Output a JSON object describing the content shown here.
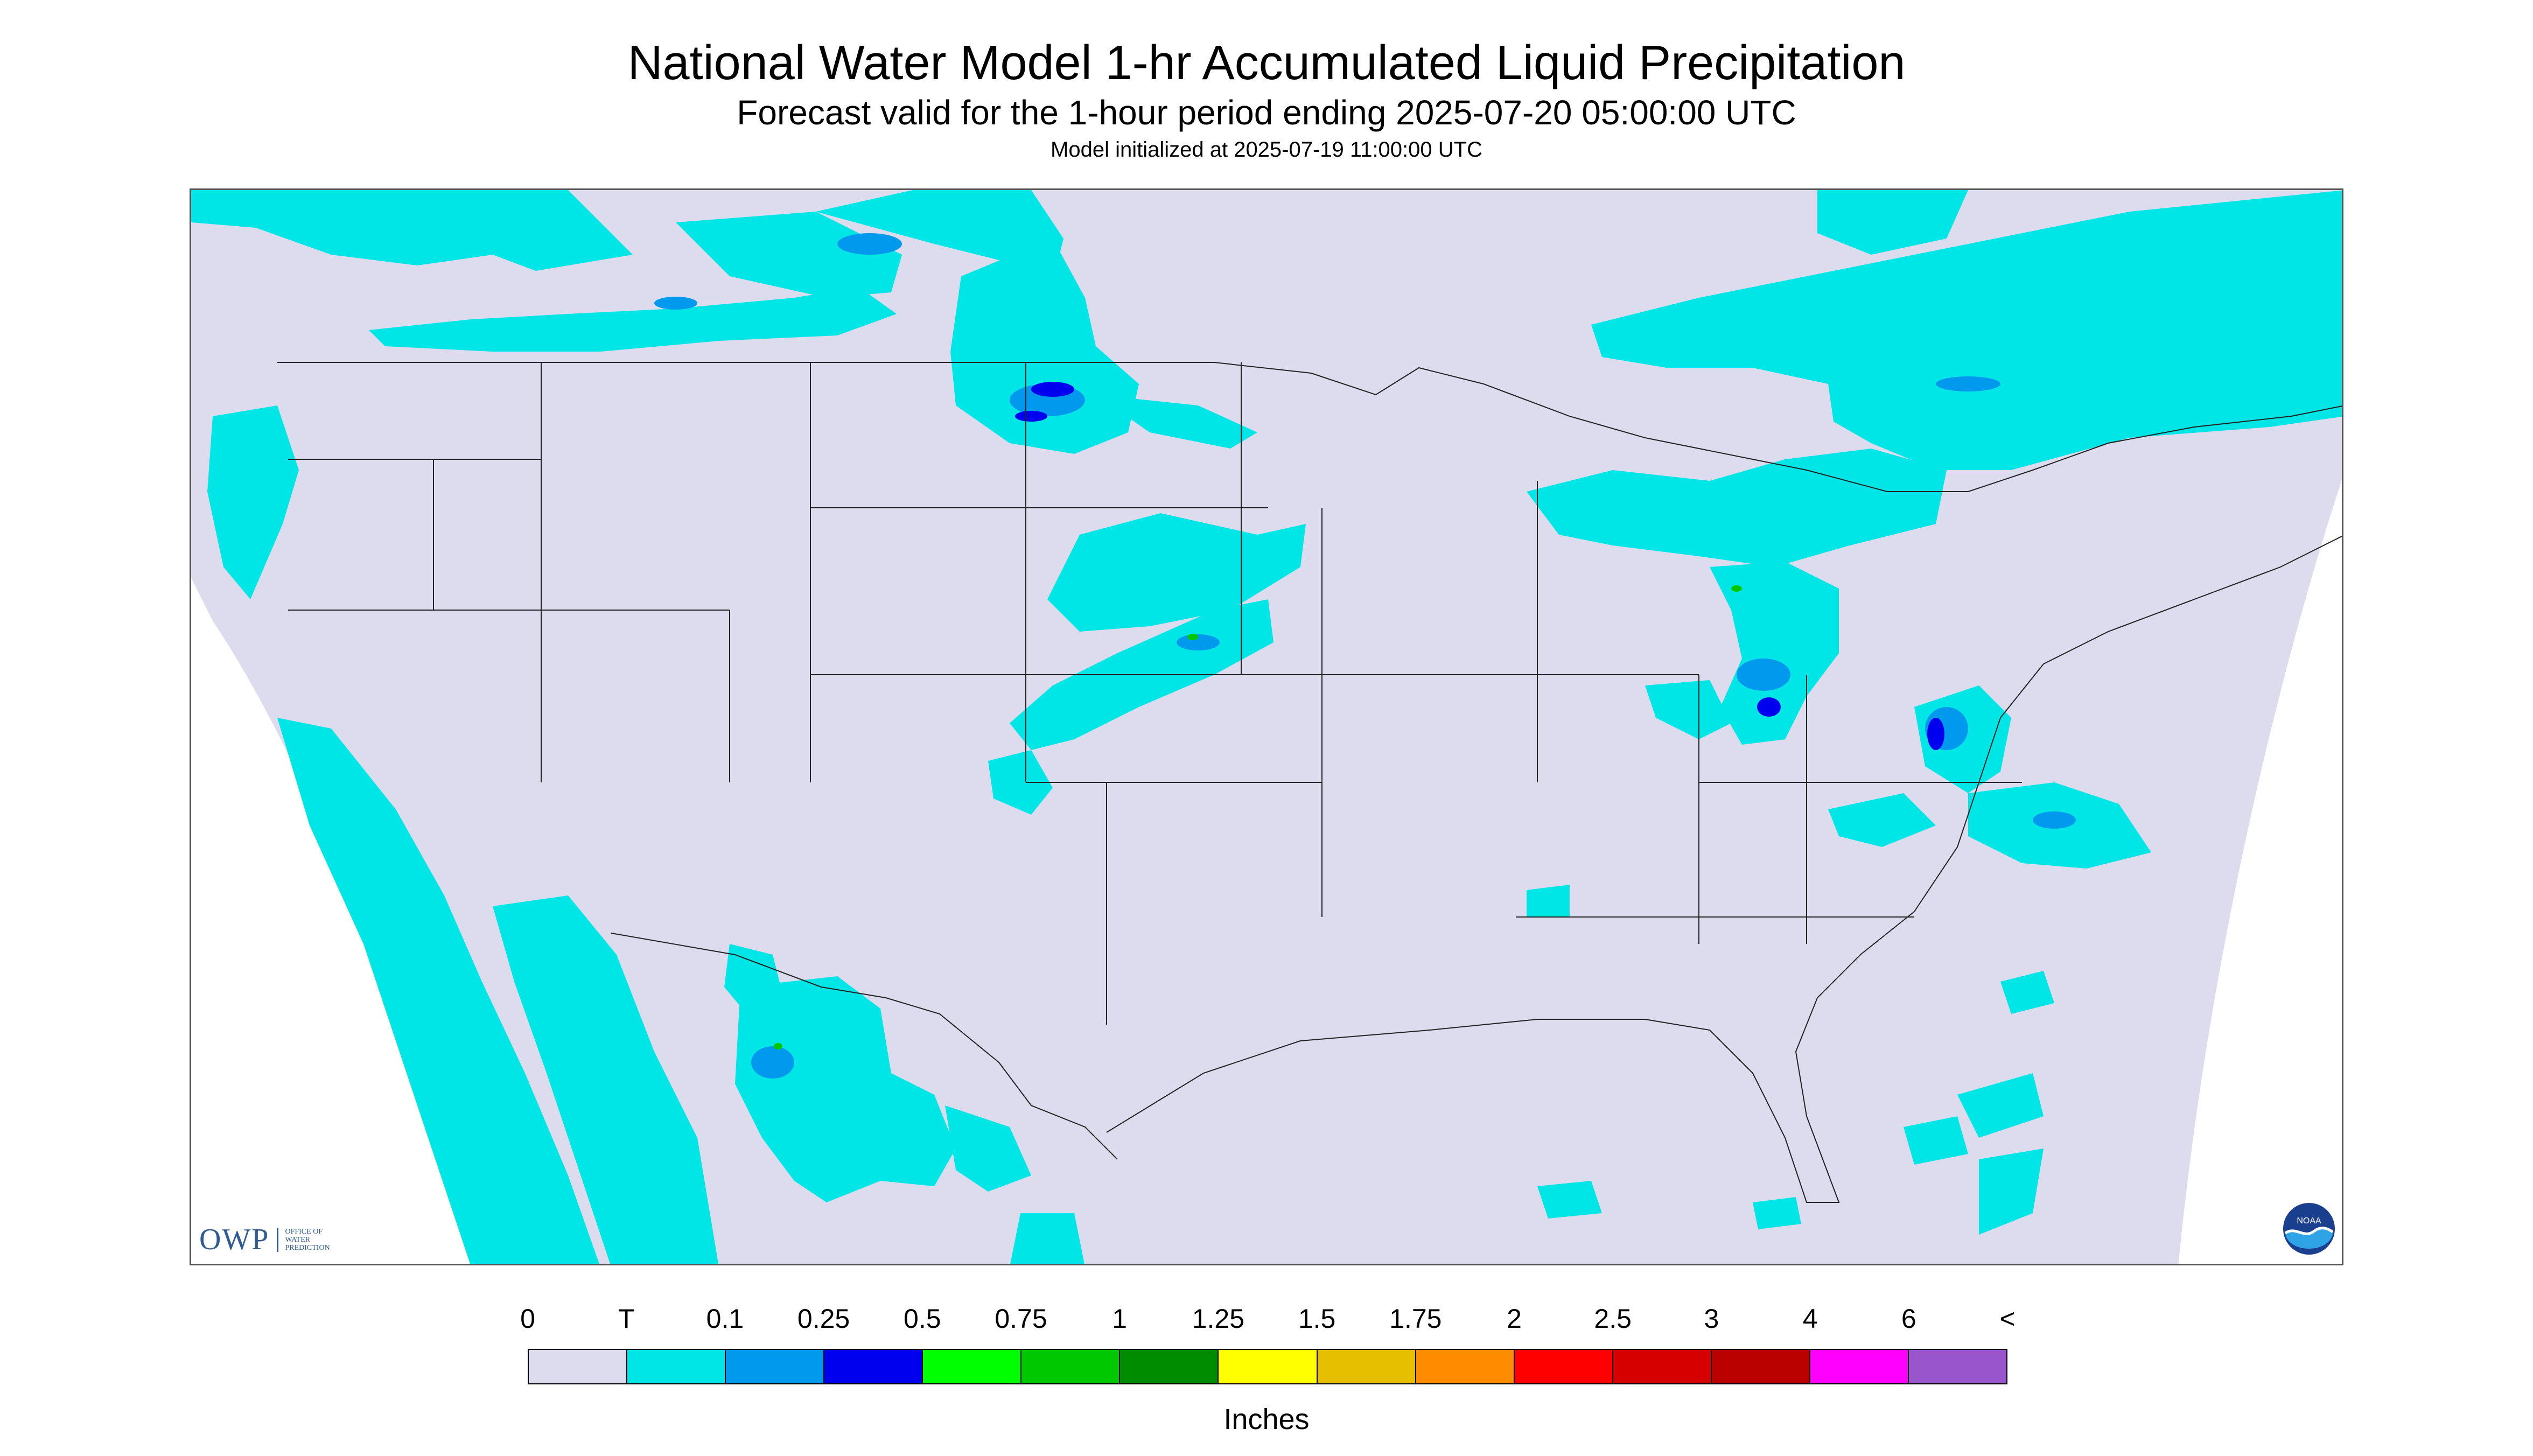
{
  "title": "National Water Model 1-hr Accumulated Liquid Precipitation",
  "subtitle": "Forecast valid for the 1-hour period ending 2025-07-20 05:00:00 UTC",
  "init_line": "Model initialized at 2025-07-19 11:00:00 UTC",
  "logos": {
    "owp_text": "OWP",
    "owp_sub": [
      "OFFICE OF",
      "WATER",
      "PREDICTION"
    ],
    "noaa_text": "NOAA"
  },
  "legend": {
    "labels": [
      "0",
      "T",
      "0.1",
      "0.25",
      "0.5",
      "0.75",
      "1",
      "1.25",
      "1.5",
      "1.75",
      "2",
      "2.5",
      "3",
      "4",
      "6",
      "<"
    ],
    "colors": [
      "#dcdcee",
      "#00e5e5",
      "#0099ee",
      "#0000ee",
      "#00ff00",
      "#00c800",
      "#008c00",
      "#ffff00",
      "#e5bf00",
      "#ff8c00",
      "#ff0000",
      "#d70000",
      "#bb0000",
      "#ff00ff",
      "#9955cc"
    ],
    "units": "Inches"
  },
  "map": {
    "background": "#dcdcee",
    "outside": "#ffffff",
    "precip_trace": "#00e5e5",
    "precip_light": "#0099ee",
    "precip_moderate": "#0000ee",
    "precip_heavy": "#00c800"
  }
}
